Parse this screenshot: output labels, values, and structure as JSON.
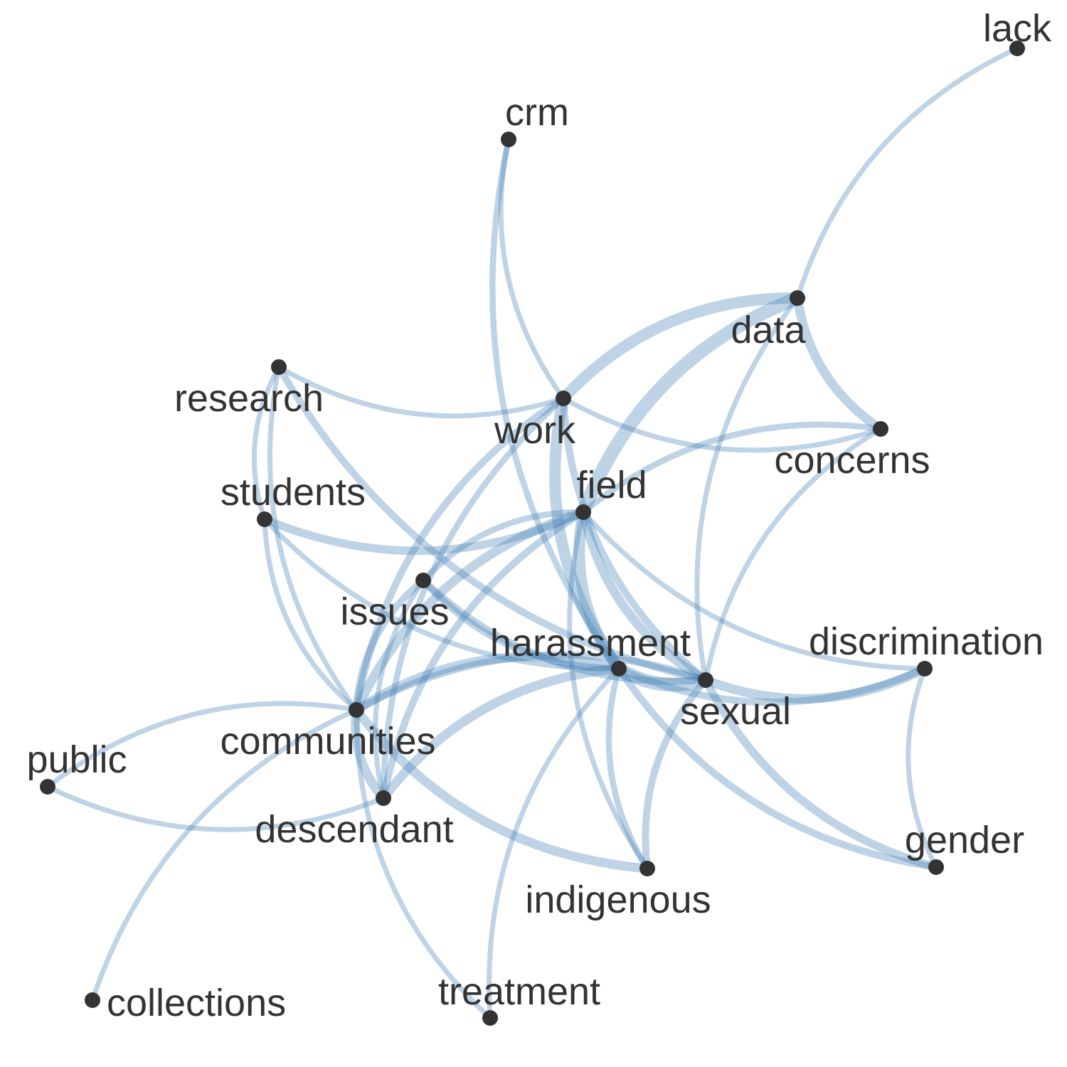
{
  "colors": {
    "background": "#ffffff",
    "edge": "#4682b4",
    "node": "#333333",
    "label": "#333333"
  },
  "graph": {
    "nodes": [
      {
        "id": "lack",
        "label": "lack"
      },
      {
        "id": "crm",
        "label": "crm"
      },
      {
        "id": "data",
        "label": "data"
      },
      {
        "id": "research",
        "label": "research"
      },
      {
        "id": "work",
        "label": "work"
      },
      {
        "id": "concerns",
        "label": "concerns"
      },
      {
        "id": "students",
        "label": "students"
      },
      {
        "id": "field",
        "label": "field"
      },
      {
        "id": "issues",
        "label": "issues"
      },
      {
        "id": "harassment",
        "label": "harassment"
      },
      {
        "id": "discrimination",
        "label": "discrimination"
      },
      {
        "id": "sexual",
        "label": "sexual"
      },
      {
        "id": "communities",
        "label": "communities"
      },
      {
        "id": "public",
        "label": "public"
      },
      {
        "id": "descendant",
        "label": "descendant"
      },
      {
        "id": "gender",
        "label": "gender"
      },
      {
        "id": "indigenous",
        "label": "indigenous"
      },
      {
        "id": "collections",
        "label": "collections"
      },
      {
        "id": "treatment",
        "label": "treatment"
      }
    ],
    "edges": [
      {
        "source": "lack",
        "target": "data",
        "weight": 1
      },
      {
        "source": "crm",
        "target": "work",
        "weight": 1
      },
      {
        "source": "crm",
        "target": "harassment",
        "weight": 1.5
      },
      {
        "source": "data",
        "target": "work",
        "weight": 4
      },
      {
        "source": "data",
        "target": "field",
        "weight": 5
      },
      {
        "source": "data",
        "target": "concerns",
        "weight": 3
      },
      {
        "source": "data",
        "target": "sexual",
        "weight": 1
      },
      {
        "source": "research",
        "target": "work",
        "weight": 1
      },
      {
        "source": "research",
        "target": "students",
        "weight": 1
      },
      {
        "source": "research",
        "target": "communities",
        "weight": 1
      },
      {
        "source": "research",
        "target": "sexual",
        "weight": 2
      },
      {
        "source": "work",
        "target": "concerns",
        "weight": 1
      },
      {
        "source": "work",
        "target": "communities",
        "weight": 2
      },
      {
        "source": "work",
        "target": "harassment",
        "weight": 4
      },
      {
        "source": "work",
        "target": "sexual",
        "weight": 2
      },
      {
        "source": "work",
        "target": "descendant",
        "weight": 1.5
      },
      {
        "source": "concerns",
        "target": "field",
        "weight": 1.5
      },
      {
        "source": "concerns",
        "target": "sexual",
        "weight": 1
      },
      {
        "source": "students",
        "target": "field",
        "weight": 2.5
      },
      {
        "source": "students",
        "target": "harassment",
        "weight": 1
      },
      {
        "source": "students",
        "target": "communities",
        "weight": 1
      },
      {
        "source": "field",
        "target": "issues",
        "weight": 1.5
      },
      {
        "source": "field",
        "target": "communities",
        "weight": 3
      },
      {
        "source": "field",
        "target": "descendant",
        "weight": 2
      },
      {
        "source": "field",
        "target": "harassment",
        "weight": 4
      },
      {
        "source": "field",
        "target": "sexual",
        "weight": 3
      },
      {
        "source": "field",
        "target": "discrimination",
        "weight": 1
      },
      {
        "source": "field",
        "target": "indigenous",
        "weight": 1
      },
      {
        "source": "issues",
        "target": "communities",
        "weight": 2
      },
      {
        "source": "issues",
        "target": "descendant",
        "weight": 1
      },
      {
        "source": "issues",
        "target": "harassment",
        "weight": 2
      },
      {
        "source": "issues",
        "target": "sexual",
        "weight": 2
      },
      {
        "source": "harassment",
        "target": "sexual",
        "weight": 5
      },
      {
        "source": "harassment",
        "target": "communities",
        "weight": 3
      },
      {
        "source": "harassment",
        "target": "descendant",
        "weight": 3
      },
      {
        "source": "harassment",
        "target": "indigenous",
        "weight": 1.5
      },
      {
        "source": "harassment",
        "target": "gender",
        "weight": 2
      },
      {
        "source": "harassment",
        "target": "treatment",
        "weight": 1
      },
      {
        "source": "harassment",
        "target": "discrimination",
        "weight": 2
      },
      {
        "source": "sexual",
        "target": "discrimination",
        "weight": 3
      },
      {
        "source": "sexual",
        "target": "gender",
        "weight": 2.5
      },
      {
        "source": "sexual",
        "target": "communities",
        "weight": 2
      },
      {
        "source": "sexual",
        "target": "indigenous",
        "weight": 2
      },
      {
        "source": "discrimination",
        "target": "gender",
        "weight": 1
      },
      {
        "source": "communities",
        "target": "public",
        "weight": 1
      },
      {
        "source": "communities",
        "target": "descendant",
        "weight": 3
      },
      {
        "source": "communities",
        "target": "indigenous",
        "weight": 3
      },
      {
        "source": "communities",
        "target": "collections",
        "weight": 1
      },
      {
        "source": "communities",
        "target": "treatment",
        "weight": 1
      },
      {
        "source": "public",
        "target": "descendant",
        "weight": 1
      }
    ]
  }
}
